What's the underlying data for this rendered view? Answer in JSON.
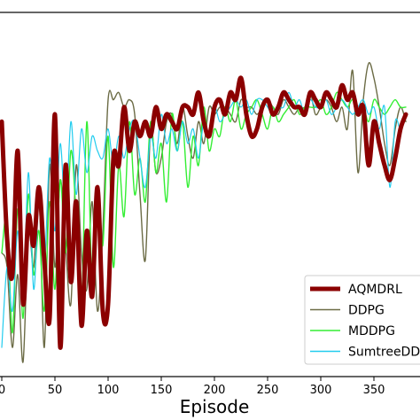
{
  "chart_data": {
    "type": "line",
    "xlabel": "Episode",
    "ylabel": "",
    "xlim": [
      0,
      380
    ],
    "ylim": [
      0,
      100
    ],
    "grid": false,
    "legend_position": "bottom-right",
    "x_ticks": [
      0,
      50,
      100,
      150,
      200,
      250,
      300,
      350
    ],
    "x_tick_labels": [
      "0",
      "50",
      "100",
      "150",
      "200",
      "250",
      "300",
      "350"
    ],
    "series": [
      {
        "name": "AQMDRL",
        "color": "#8b0000",
        "x": [
          0,
          5,
          10,
          15,
          20,
          25,
          30,
          35,
          40,
          45,
          50,
          55,
          60,
          65,
          70,
          75,
          80,
          85,
          90,
          95,
          100,
          105,
          110,
          115,
          120,
          125,
          130,
          135,
          140,
          145,
          150,
          155,
          160,
          165,
          170,
          175,
          180,
          185,
          190,
          195,
          200,
          205,
          210,
          215,
          220,
          225,
          230,
          235,
          240,
          245,
          250,
          255,
          260,
          265,
          270,
          275,
          280,
          285,
          290,
          295,
          300,
          305,
          310,
          315,
          320,
          325,
          330,
          335,
          340,
          345,
          350,
          355,
          360,
          365,
          370,
          375,
          380
        ],
        "values": [
          70,
          38,
          28,
          62,
          20,
          44,
          36,
          52,
          32,
          16,
          72,
          8,
          58,
          26,
          48,
          14,
          40,
          22,
          52,
          18,
          20,
          60,
          58,
          74,
          62,
          70,
          66,
          70,
          66,
          74,
          68,
          72,
          70,
          68,
          74,
          74,
          72,
          78,
          70,
          66,
          74,
          76,
          72,
          78,
          76,
          82,
          72,
          66,
          68,
          74,
          76,
          72,
          74,
          78,
          76,
          74,
          74,
          72,
          78,
          76,
          74,
          78,
          76,
          74,
          80,
          76,
          78,
          72,
          74,
          58,
          70,
          64,
          58,
          54,
          60,
          68,
          72
        ]
      },
      {
        "name": "DDPG",
        "color": "#6b6b45",
        "x": [
          0,
          5,
          10,
          15,
          20,
          25,
          30,
          35,
          40,
          45,
          50,
          55,
          60,
          65,
          70,
          75,
          80,
          85,
          90,
          95,
          100,
          105,
          110,
          115,
          120,
          125,
          130,
          135,
          140,
          145,
          150,
          155,
          160,
          165,
          170,
          175,
          180,
          185,
          190,
          195,
          200,
          205,
          210,
          215,
          220,
          225,
          230,
          235,
          240,
          245,
          250,
          255,
          260,
          265,
          270,
          275,
          280,
          285,
          290,
          295,
          300,
          305,
          310,
          315,
          320,
          325,
          330,
          335,
          340,
          345,
          350,
          355,
          360,
          365,
          370,
          375,
          380
        ],
        "values": [
          34,
          30,
          8,
          28,
          4,
          40,
          30,
          50,
          8,
          58,
          30,
          54,
          36,
          20,
          58,
          34,
          24,
          48,
          18,
          40,
          76,
          76,
          78,
          74,
          76,
          72,
          50,
          32,
          68,
          56,
          60,
          70,
          72,
          64,
          74,
          66,
          60,
          70,
          64,
          74,
          72,
          74,
          74,
          72,
          70,
          76,
          74,
          74,
          72,
          74,
          76,
          74,
          72,
          76,
          74,
          72,
          74,
          74,
          78,
          72,
          74,
          76,
          74,
          70,
          74,
          68,
          84,
          56,
          76,
          86,
          82,
          74,
          64,
          58,
          68,
          74,
          70
        ]
      },
      {
        "name": "MDDPG",
        "color": "#33ee33",
        "x": [
          0,
          5,
          10,
          15,
          20,
          25,
          30,
          35,
          40,
          45,
          50,
          55,
          60,
          65,
          70,
          75,
          80,
          85,
          90,
          95,
          100,
          105,
          110,
          115,
          120,
          125,
          130,
          135,
          140,
          145,
          150,
          155,
          160,
          165,
          170,
          175,
          180,
          185,
          190,
          195,
          200,
          205,
          210,
          215,
          220,
          225,
          230,
          235,
          240,
          245,
          250,
          255,
          260,
          265,
          270,
          275,
          280,
          285,
          290,
          295,
          300,
          305,
          310,
          315,
          320,
          325,
          330,
          335,
          340,
          345,
          350,
          355,
          360,
          365,
          370,
          375,
          380
        ],
        "values": [
          34,
          44,
          12,
          46,
          16,
          50,
          28,
          40,
          18,
          48,
          24,
          54,
          34,
          62,
          44,
          20,
          70,
          26,
          52,
          36,
          66,
          30,
          58,
          44,
          70,
          50,
          60,
          48,
          70,
          56,
          64,
          48,
          72,
          62,
          70,
          52,
          66,
          58,
          74,
          62,
          68,
          66,
          74,
          70,
          76,
          68,
          72,
          74,
          76,
          72,
          68,
          74,
          70,
          72,
          74,
          76,
          72,
          74,
          74,
          74,
          76,
          72,
          74,
          78,
          76,
          74,
          76,
          72,
          74,
          70,
          76,
          74,
          72,
          74,
          76,
          74,
          74
        ]
      },
      {
        "name": "SumtreeDDPG",
        "color": "#22ccee",
        "x": [
          0,
          5,
          10,
          15,
          20,
          25,
          30,
          35,
          40,
          45,
          50,
          55,
          60,
          65,
          70,
          75,
          80,
          85,
          90,
          95,
          100,
          105,
          110,
          115,
          120,
          125,
          130,
          135,
          140,
          145,
          150,
          155,
          160,
          165,
          170,
          175,
          180,
          185,
          190,
          195,
          200,
          205,
          210,
          215,
          220,
          225,
          230,
          235,
          240,
          245,
          250,
          255,
          260,
          265,
          270,
          275,
          280,
          285,
          290,
          295,
          300,
          305,
          310,
          315,
          320,
          325,
          330,
          335,
          340,
          345,
          350,
          355,
          360,
          365,
          370,
          375,
          380
        ],
        "values": [
          8,
          30,
          18,
          40,
          20,
          56,
          24,
          48,
          30,
          60,
          40,
          64,
          44,
          70,
          50,
          68,
          56,
          66,
          62,
          60,
          68,
          58,
          66,
          60,
          68,
          70,
          60,
          52,
          66,
          60,
          72,
          64,
          68,
          62,
          70,
          64,
          68,
          60,
          70,
          66,
          74,
          70,
          72,
          74,
          76,
          74,
          76,
          72,
          76,
          76,
          74,
          72,
          74,
          74,
          78,
          74,
          76,
          72,
          76,
          74,
          74,
          76,
          72,
          74,
          76,
          74,
          72,
          74,
          76,
          72,
          74,
          68,
          74,
          52,
          70,
          68,
          72
        ]
      }
    ]
  }
}
